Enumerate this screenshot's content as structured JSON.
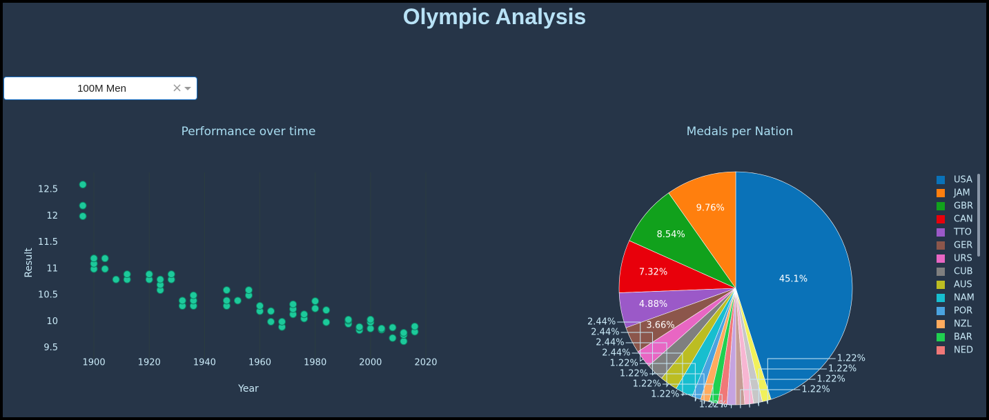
{
  "title": "Olympic Analysis",
  "dropdown": {
    "value": "100M Men"
  },
  "chart_data": [
    {
      "type": "scatter",
      "title": "Performance over time",
      "x_label": "Year",
      "y_label": "Result",
      "x": [
        1896,
        1896,
        1896,
        1900,
        1900,
        1900,
        1904,
        1904,
        1908,
        1912,
        1912,
        1920,
        1920,
        1924,
        1924,
        1924,
        1928,
        1928,
        1932,
        1932,
        1936,
        1936,
        1936,
        1948,
        1948,
        1948,
        1952,
        1956,
        1956,
        1960,
        1960,
        1964,
        1964,
        1968,
        1968,
        1972,
        1972,
        1972,
        1976,
        1976,
        1980,
        1980,
        1984,
        1984,
        1992,
        1992,
        1992,
        1996,
        1996,
        1996,
        2000,
        2000,
        2000,
        2004,
        2004,
        2008,
        2008,
        2012,
        2012,
        2012,
        2016,
        2016
      ],
      "values": [
        12.0,
        12.2,
        12.6,
        11.0,
        11.1,
        11.2,
        11.0,
        11.2,
        10.8,
        10.8,
        10.9,
        10.8,
        10.9,
        10.6,
        10.7,
        10.8,
        10.8,
        10.9,
        10.3,
        10.4,
        10.3,
        10.4,
        10.5,
        10.3,
        10.4,
        10.6,
        10.4,
        10.5,
        10.6,
        10.2,
        10.3,
        10.0,
        10.2,
        9.9,
        10.0,
        10.14,
        10.24,
        10.33,
        10.06,
        10.14,
        10.25,
        10.39,
        9.99,
        10.22,
        9.96,
        10.02,
        10.04,
        9.84,
        9.89,
        9.9,
        9.87,
        9.99,
        10.04,
        9.85,
        9.87,
        9.69,
        9.89,
        9.63,
        9.75,
        9.79,
        9.81,
        9.91
      ],
      "color": "#1dc99b",
      "xlim": [
        1891,
        2022
      ],
      "ylim": [
        9.3,
        12.83
      ],
      "xticks": [
        1900,
        1920,
        1940,
        1960,
        1980,
        2000,
        2020
      ],
      "yticks": [
        9.5,
        10,
        10.5,
        11,
        11.5,
        12,
        12.5
      ],
      "grid": true
    },
    {
      "type": "pie",
      "title": "Medals per Nation",
      "categories": [
        "USA",
        "JAM",
        "GBR",
        "CAN",
        "TTO",
        "GER",
        "URS",
        "CUB",
        "AUS",
        "NAM",
        "POR",
        "NZL",
        "BAR",
        "NED",
        null,
        null,
        null,
        null,
        null
      ],
      "values": [
        45.1,
        9.76,
        8.54,
        7.32,
        4.88,
        3.66,
        2.44,
        2.44,
        2.44,
        2.44,
        1.22,
        1.22,
        1.22,
        1.22,
        1.22,
        1.22,
        1.22,
        1.22,
        1.22
      ],
      "value_labels": [
        "45.1%",
        "9.76%",
        "8.54%",
        "7.32%",
        "4.88%",
        "3.66%",
        "2.44%",
        "2.44%",
        "2.44%",
        "2.44%",
        "1.22%",
        "1.22%",
        "1.22%",
        "1.22%",
        "1.22%",
        "1.22%",
        "1.22%",
        "1.22%",
        "1.22%"
      ],
      "colors": [
        "#0a72b8",
        "#ff7f0e",
        "#11a11c",
        "#e8000b",
        "#9b59c8",
        "#8c564b",
        "#e866c3",
        "#7f7f7f",
        "#bcbd22",
        "#17becf",
        "#4aa3df",
        "#ffab5e",
        "#20d050",
        "#f07878",
        "#c5a3e0",
        "#c49c94",
        "#f7b6d2",
        "#c7c7c7",
        "#f1f15a"
      ],
      "legend": "right"
    }
  ]
}
